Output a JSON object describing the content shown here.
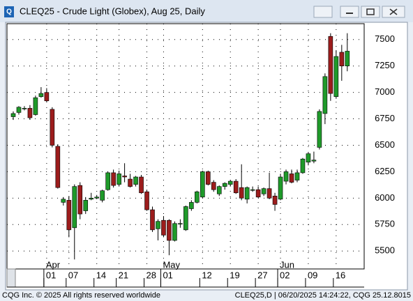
{
  "chart_data": {
    "type": "candlestick",
    "title": "CLEQ25 - Crude Light (Globex), Aug 25, Daily",
    "categories": [
      null,
      null,
      null,
      null,
      null,
      null,
      "01",
      null,
      null,
      null,
      "07",
      null,
      null,
      null,
      null,
      "14",
      null,
      null,
      null,
      "21",
      null,
      null,
      null,
      null,
      "28",
      null,
      null,
      "01",
      null,
      null,
      null,
      null,
      null,
      null,
      "12",
      null,
      null,
      null,
      null,
      "19",
      null,
      null,
      null,
      null,
      "27",
      null,
      null,
      null,
      "02",
      null,
      null,
      null,
      null,
      "09",
      null,
      null,
      null,
      null,
      "16",
      null,
      null
    ],
    "months": [
      {
        "label": "Apr",
        "at": 6
      },
      {
        "label": "May",
        "at": 27
      },
      {
        "label": "Jun",
        "at": 48
      }
    ],
    "open": [
      6770,
      6810,
      6850,
      6850,
      6790,
      6960,
      7000,
      6840,
      6490,
      5960,
      5980,
      5720,
      6120,
      5880,
      5990,
      6000,
      5980,
      6080,
      6240,
      6130,
      6210,
      6180,
      6130,
      6200,
      6060,
      5890,
      5710,
      5790,
      5790,
      5600,
      5760,
      5700,
      5900,
      5960,
      6010,
      6250,
      6150,
      6040,
      6110,
      6130,
      6160,
      6100,
      5990,
      6080,
      6080,
      6040,
      6090,
      6020,
      5990,
      6160,
      6230,
      6170,
      6240,
      6340,
      6350,
      6480,
      6800,
      7530,
      6960,
      7380,
      7250
    ],
    "high": [
      6820,
      6870,
      6870,
      6880,
      6970,
      7050,
      7040,
      6860,
      6510,
      6010,
      6020,
      6130,
      6150,
      6010,
      6050,
      6030,
      6080,
      6250,
      6270,
      6260,
      6330,
      6230,
      6210,
      6220,
      6080,
      5920,
      5800,
      5830,
      5800,
      5780,
      5800,
      5930,
      5980,
      6070,
      6260,
      6260,
      6170,
      6120,
      6150,
      6170,
      6180,
      6320,
      6110,
      6110,
      6110,
      6100,
      6240,
      6050,
      6230,
      6270,
      6270,
      6270,
      6380,
      6430,
      6440,
      6840,
      7180,
      7560,
      7400,
      7450,
      7560
    ],
    "low": [
      6740,
      6790,
      6830,
      6740,
      6780,
      6950,
      6910,
      6480,
      6090,
      5930,
      5630,
      5420,
      5800,
      5850,
      5980,
      5990,
      5960,
      6070,
      6100,
      6110,
      6150,
      6100,
      6110,
      6040,
      5880,
      5680,
      5600,
      5630,
      5460,
      5590,
      5720,
      5690,
      5880,
      5950,
      6000,
      6120,
      6060,
      6020,
      6080,
      6110,
      6040,
      5980,
      5950,
      6060,
      6000,
      6020,
      5990,
      5880,
      5980,
      6130,
      6140,
      6150,
      6230,
      6310,
      6330,
      6460,
      6700,
      6920,
      6940,
      7110,
      7200
    ],
    "close": [
      6800,
      6860,
      6850,
      6760,
      6950,
      6990,
      6920,
      6500,
      6100,
      5990,
      5700,
      6110,
      5850,
      5980,
      6000,
      6010,
      6070,
      6240,
      6120,
      6230,
      6200,
      6110,
      6200,
      6050,
      5890,
      5700,
      5780,
      5650,
      5600,
      5760,
      5760,
      5920,
      5960,
      6060,
      6250,
      6130,
      6080,
      6110,
      6140,
      6160,
      6050,
      6000,
      6100,
      6080,
      6010,
      6090,
      6000,
      5940,
      6200,
      6250,
      6150,
      6240,
      6370,
      6420,
      6360,
      6820,
      7150,
      6990,
      7340,
      7250,
      7390
    ],
    "up_color": "#1f9a2a",
    "down_color": "#9c1c1c",
    "ylim": [
      5330,
      7650
    ],
    "yticks": [
      5500,
      5750,
      6000,
      6250,
      6500,
      6750,
      7000,
      7250,
      7500
    ],
    "grid": true
  },
  "footer": {
    "left": "CQG Inc. © 2025 All rights reserved worldwide",
    "right": "CLEQ25,D | 06/20/2025 14:24:22, CQG 25.12.8015"
  }
}
